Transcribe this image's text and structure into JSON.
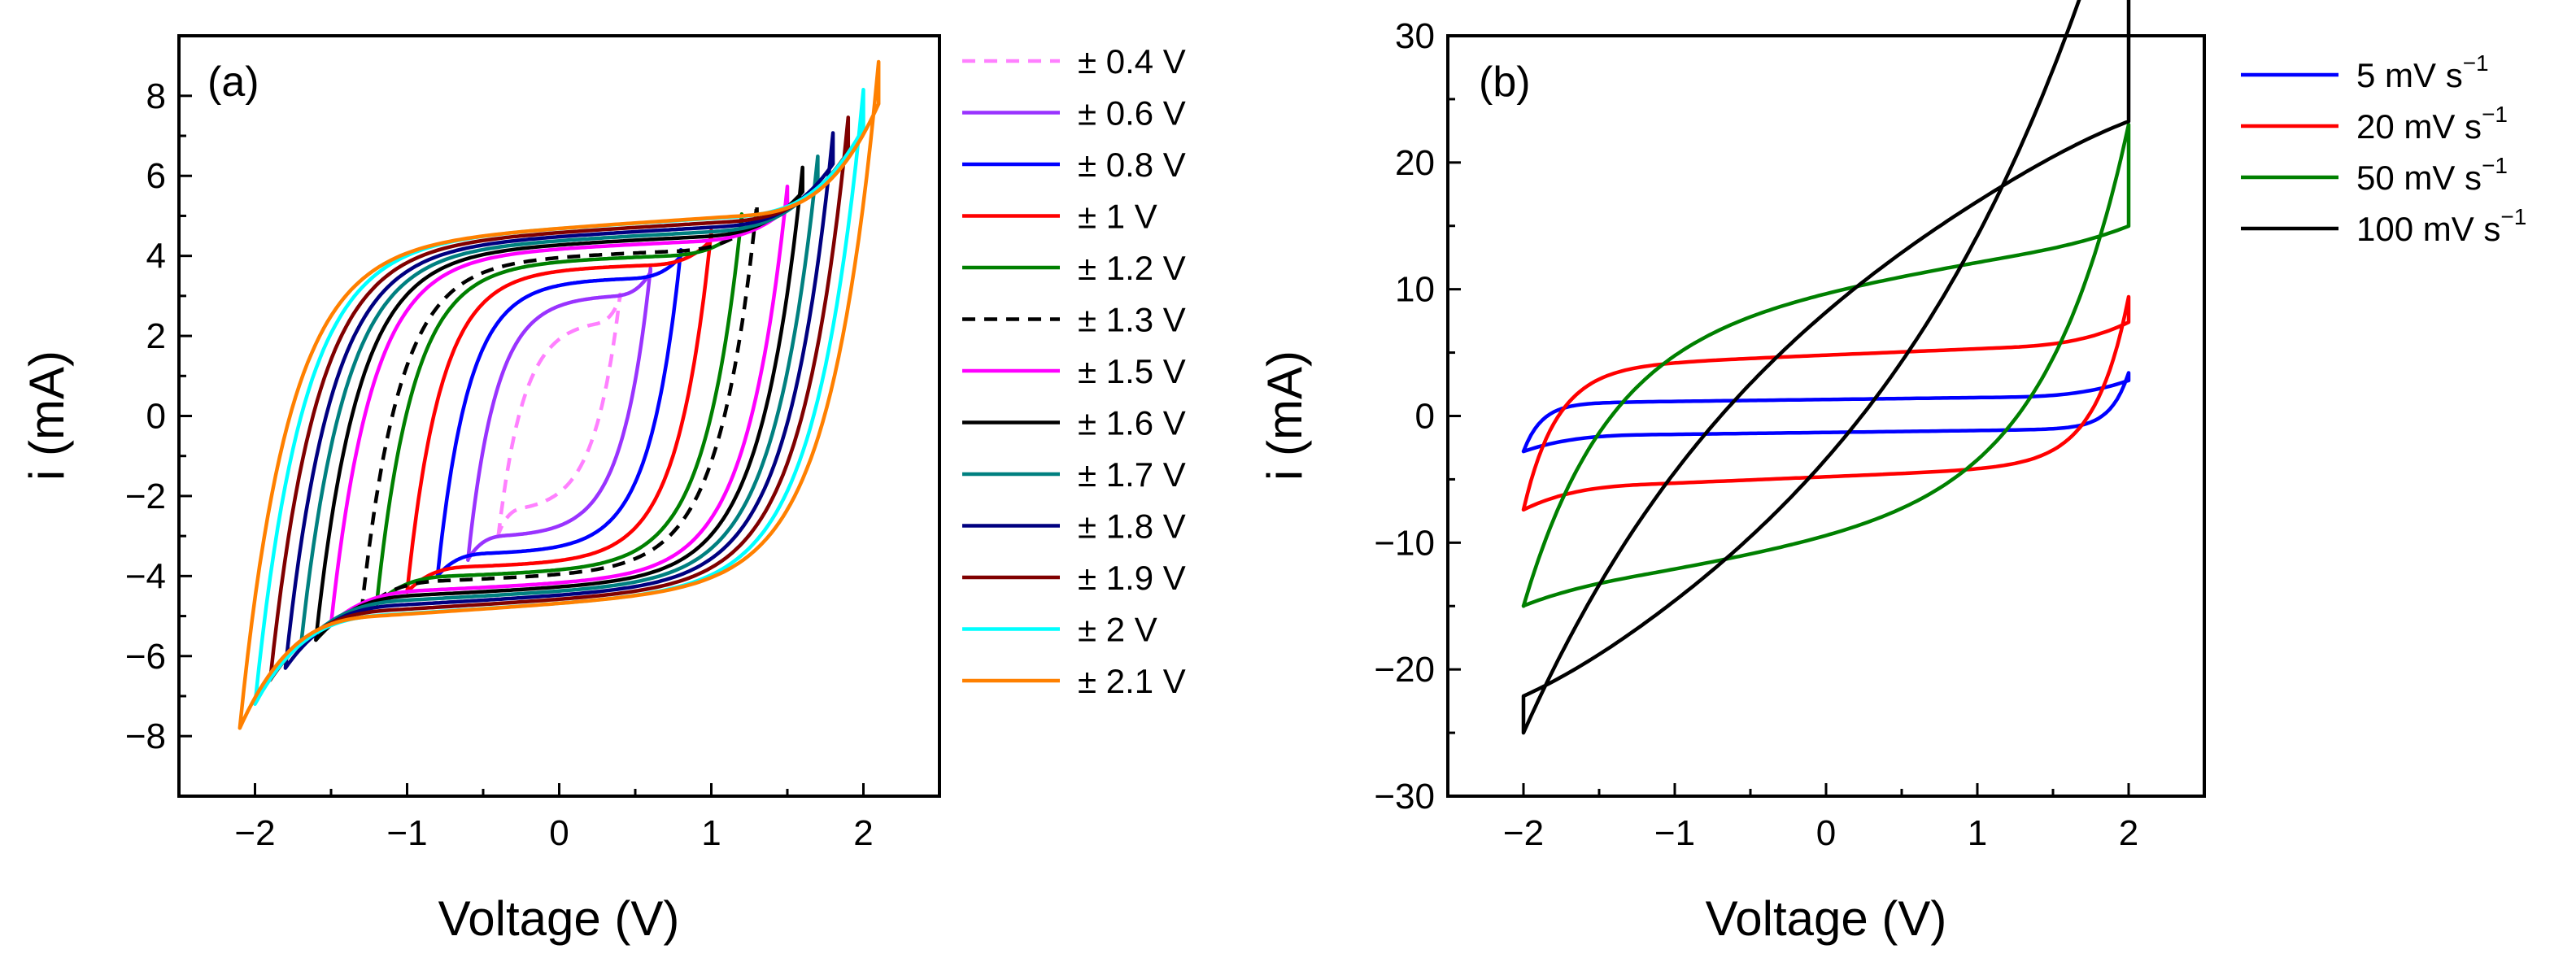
{
  "chart_data": [
    {
      "panel": "(a)",
      "type": "line",
      "xlabel": "Voltage (V)",
      "ylabel": "i (mA)",
      "xlim": [
        -2.5,
        2.5
      ],
      "ylim": [
        -9.5,
        9.5
      ],
      "xticks": [
        -2,
        -1,
        0,
        1,
        2
      ],
      "yticks": [
        -8,
        -6,
        -4,
        -2,
        0,
        2,
        4,
        6,
        8
      ],
      "grid": false,
      "legend_position": "outside-right",
      "series": [
        {
          "name": "± 0.4 V",
          "color": "#ff80ff",
          "dash": true,
          "vmax": 0.4,
          "ipeak": 3.0,
          "iplat": 2.4
        },
        {
          "name": "± 0.6 V",
          "color": "#9933ff",
          "dash": false,
          "vmax": 0.6,
          "ipeak": 3.6,
          "iplat": 3.0
        },
        {
          "name": "± 0.8 V",
          "color": "#0000ff",
          "dash": false,
          "vmax": 0.8,
          "ipeak": 4.0,
          "iplat": 3.4
        },
        {
          "name": "± 1 V",
          "color": "#ff0000",
          "dash": false,
          "vmax": 1.0,
          "ipeak": 4.4,
          "iplat": 3.7
        },
        {
          "name": "± 1.2 V",
          "color": "#008000",
          "dash": false,
          "vmax": 1.2,
          "ipeak": 4.7,
          "iplat": 3.9
        },
        {
          "name": "± 1.3 V",
          "color": "#000000",
          "dash": true,
          "vmax": 1.3,
          "ipeak": 4.9,
          "iplat": 4.0
        },
        {
          "name": "± 1.5 V",
          "color": "#ff00ff",
          "dash": false,
          "vmax": 1.5,
          "ipeak": 5.2,
          "iplat": 4.2
        },
        {
          "name": "± 1.6 V",
          "color": "#000000",
          "dash": false,
          "vmax": 1.6,
          "ipeak": 5.6,
          "iplat": 4.3
        },
        {
          "name": "± 1.7 V",
          "color": "#008080",
          "dash": false,
          "vmax": 1.7,
          "ipeak": 5.8,
          "iplat": 4.4
        },
        {
          "name": "± 1.8 V",
          "color": "#000080",
          "dash": false,
          "vmax": 1.8,
          "ipeak": 6.3,
          "iplat": 4.5
        },
        {
          "name": "± 1.9 V",
          "color": "#800000",
          "dash": false,
          "vmax": 1.9,
          "ipeak": 6.6,
          "iplat": 4.6
        },
        {
          "name": "± 2 V",
          "color": "#00ffff",
          "dash": false,
          "vmax": 2.0,
          "ipeak": 7.2,
          "iplat": 4.7
        },
        {
          "name": "± 2.1 V",
          "color": "#ff8000",
          "dash": false,
          "vmax": 2.1,
          "ipeak": 7.8,
          "iplat": 4.7
        }
      ]
    },
    {
      "panel": "(b)",
      "type": "line",
      "xlabel": "Voltage (V)",
      "ylabel": "i (mA)",
      "xlim": [
        -2.5,
        2.5
      ],
      "ylim": [
        -30,
        30
      ],
      "xticks": [
        -2,
        -1,
        0,
        1,
        2
      ],
      "yticks": [
        -30,
        -20,
        -10,
        0,
        10,
        20,
        30
      ],
      "grid": false,
      "legend_position": "outside-right",
      "series": [
        {
          "name": "5 mV s",
          "sup": "−1",
          "color": "#0000ff",
          "vmax": 2.0,
          "ipeak": 2.8,
          "iplat": 1.3,
          "slope": 0.15,
          "tau": 0.12
        },
        {
          "name": "20 mV s",
          "sup": "−1",
          "color": "#ff0000",
          "vmax": 2.0,
          "ipeak": 7.4,
          "iplat": 4.8,
          "slope": 0.5,
          "tau": 0.22
        },
        {
          "name": "50 mV s",
          "sup": "−1",
          "color": "#008000",
          "vmax": 2.0,
          "ipeak": 15.0,
          "iplat": 10.2,
          "slope": 2.0,
          "tau": 0.55
        },
        {
          "name": "100 mV s",
          "sup": "−1",
          "color": "#000000",
          "vmax": 2.0,
          "ipeak": 25.0,
          "iplat": 15.5,
          "slope": 5.0,
          "tau": 1.4
        }
      ]
    }
  ]
}
